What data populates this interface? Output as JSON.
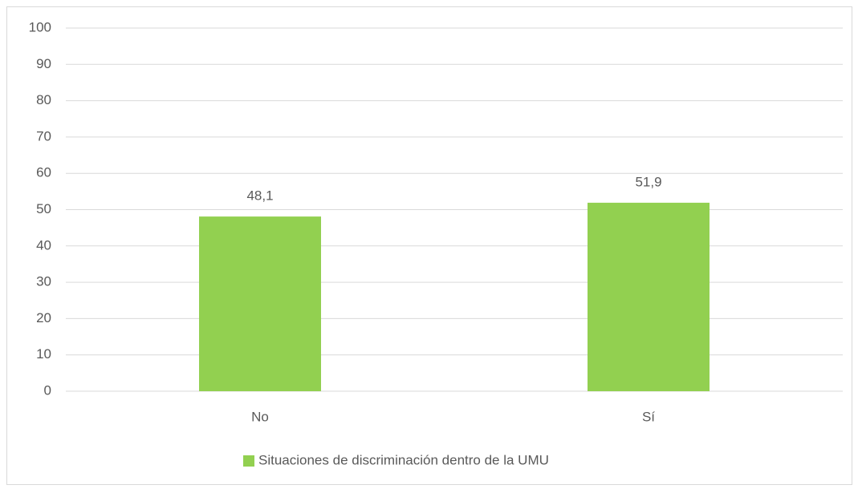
{
  "chart_data": {
    "type": "bar",
    "categories": [
      "No",
      "Sí"
    ],
    "series": [
      {
        "name": "Situaciones de discriminación dentro de la UMU",
        "color": "#92d050",
        "values": [
          48.1,
          51.9
        ],
        "value_labels": [
          "48,1",
          "51,9"
        ]
      }
    ],
    "ylim": [
      0,
      100
    ],
    "yticks": [
      0,
      10,
      20,
      30,
      40,
      50,
      60,
      70,
      80,
      90,
      100
    ],
    "grid": true,
    "legend": "bottom"
  }
}
